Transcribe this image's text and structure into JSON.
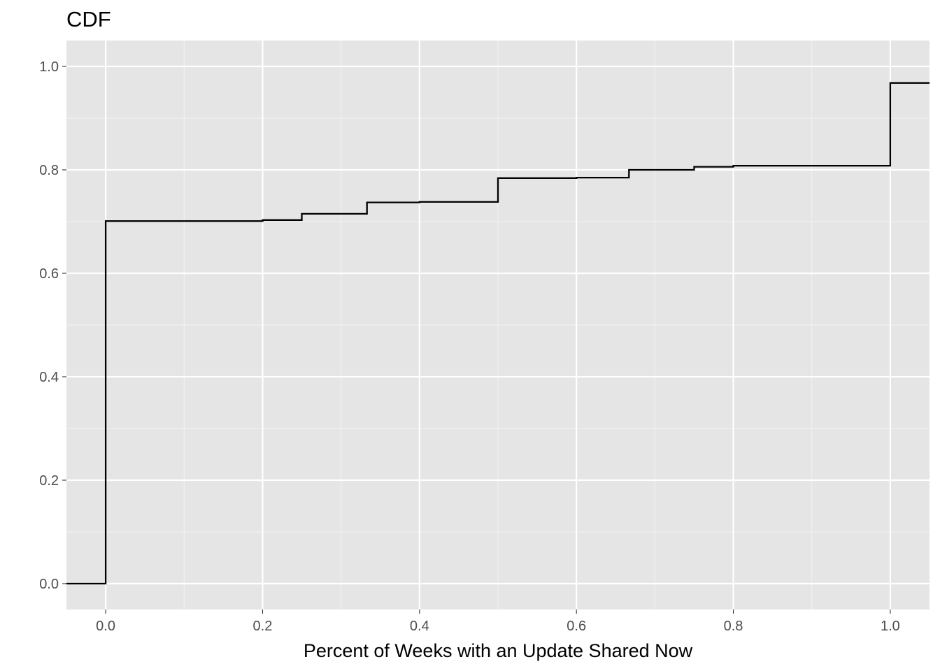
{
  "chart_data": {
    "type": "line",
    "step": true,
    "title": "CDF",
    "xlabel": "Percent of Weeks with an Update Shared Now",
    "ylabel": "",
    "xlim": [
      -0.05,
      1.05
    ],
    "ylim": [
      -0.05,
      1.05
    ],
    "x_ticks": [
      0.0,
      0.2,
      0.4,
      0.6,
      0.8,
      1.0
    ],
    "x_tick_labels": [
      "0.0",
      "0.2",
      "0.4",
      "0.6",
      "0.8",
      "1.0"
    ],
    "y_ticks": [
      0.0,
      0.2,
      0.4,
      0.6,
      0.8,
      1.0
    ],
    "y_tick_labels": [
      "0.0",
      "0.2",
      "0.4",
      "0.6",
      "0.8",
      "1.0"
    ],
    "grid": true,
    "series": [
      {
        "x": [
          -0.05,
          0.0,
          0.2,
          0.25,
          0.333,
          0.4,
          0.5,
          0.6,
          0.667,
          0.75,
          0.8,
          1.0
        ],
        "y": [
          0.0,
          0.701,
          0.703,
          0.715,
          0.737,
          0.738,
          0.784,
          0.785,
          0.8,
          0.806,
          0.808,
          0.968
        ],
        "color": "#000000"
      }
    ]
  }
}
